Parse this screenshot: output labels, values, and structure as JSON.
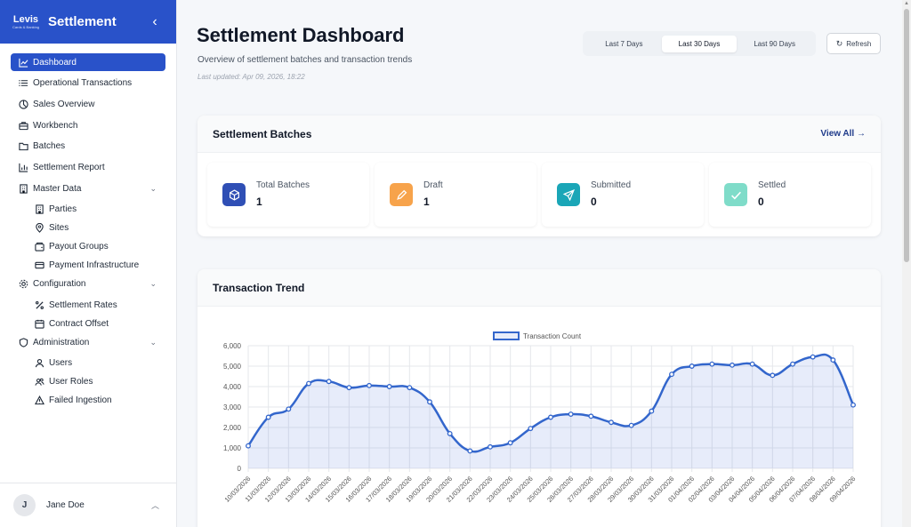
{
  "sidebar": {
    "title": "Settlement",
    "logo_text": "Levis",
    "logo_tagline": "Cards & Banking",
    "items": [
      {
        "label": "Dashboard",
        "icon": "chart-line-icon",
        "active": true
      },
      {
        "label": "Operational Transactions",
        "icon": "list-icon"
      },
      {
        "label": "Sales Overview",
        "icon": "pie-icon"
      },
      {
        "label": "Workbench",
        "icon": "briefcase-icon"
      },
      {
        "label": "Batches",
        "icon": "folder-icon"
      },
      {
        "label": "Settlement Report",
        "icon": "bar-chart-icon"
      }
    ],
    "groups": [
      {
        "label": "Master Data",
        "icon": "building-icon",
        "children": [
          {
            "label": "Parties",
            "icon": "building-icon"
          },
          {
            "label": "Sites",
            "icon": "map-pin-icon"
          },
          {
            "label": "Payout Groups",
            "icon": "wallet-icon"
          },
          {
            "label": "Payment Infrastructure",
            "icon": "credit-card-icon"
          }
        ]
      },
      {
        "label": "Configuration",
        "icon": "gear-icon",
        "children": [
          {
            "label": "Settlement Rates",
            "icon": "percent-icon"
          },
          {
            "label": "Contract Offset",
            "icon": "calendar-icon"
          }
        ]
      },
      {
        "label": "Administration",
        "icon": "shield-icon",
        "children": [
          {
            "label": "Users",
            "icon": "user-icon"
          },
          {
            "label": "User Roles",
            "icon": "users-icon"
          },
          {
            "label": "Failed Ingestion",
            "icon": "warning-icon"
          }
        ]
      }
    ],
    "user": {
      "initial": "J",
      "name": "Jane Doe"
    }
  },
  "header": {
    "title": "Settlement Dashboard",
    "subtitle": "Overview of settlement batches and transaction trends",
    "updated": "Last updated: Apr 09, 2026, 18:22",
    "ranges": [
      "Last 7 Days",
      "Last 30 Days",
      "Last 90 Days"
    ],
    "active_range": "Last 30 Days",
    "refresh_label": "Refresh"
  },
  "batches": {
    "title": "Settlement Batches",
    "view_all": "View All →",
    "stats": [
      {
        "label": "Total Batches",
        "value": "1",
        "color": "#2f4fb5",
        "icon": "cube-icon"
      },
      {
        "label": "Draft",
        "value": "1",
        "color": "#f7a34b",
        "icon": "edit-icon"
      },
      {
        "label": "Submitted",
        "value": "0",
        "color": "#1aa6b7",
        "icon": "send-icon"
      },
      {
        "label": "Settled",
        "value": "0",
        "color": "#7fdcc9",
        "icon": "check-icon"
      }
    ]
  },
  "trend": {
    "title": "Transaction Trend"
  },
  "chart_data": {
    "type": "line",
    "legend": "Transaction Count",
    "x": [
      "10/03/2026",
      "11/03/2026",
      "12/03/2026",
      "13/03/2026",
      "14/03/2026",
      "15/03/2026",
      "16/03/2026",
      "17/03/2026",
      "18/03/2026",
      "19/03/2026",
      "20/03/2026",
      "21/03/2026",
      "22/03/2026",
      "23/03/2026",
      "24/03/2026",
      "25/03/2026",
      "26/03/2026",
      "27/03/2026",
      "28/03/2026",
      "29/03/2026",
      "30/03/2026",
      "31/03/2026",
      "01/04/2026",
      "02/04/2026",
      "03/04/2026",
      "04/04/2026",
      "05/04/2026",
      "06/04/2026",
      "07/04/2026",
      "08/04/2026",
      "09/04/2026"
    ],
    "series": [
      {
        "name": "Transaction Count",
        "values": [
          1100,
          2500,
          2900,
          4150,
          4250,
          3950,
          4050,
          4000,
          3950,
          3250,
          1700,
          850,
          1050,
          1250,
          1950,
          2500,
          2650,
          2550,
          2250,
          2100,
          2800,
          4600,
          5000,
          5100,
          5050,
          5100,
          4550,
          5100,
          5450,
          5300,
          3100
        ]
      }
    ],
    "yticks": [
      "0",
      "1,000",
      "2,000",
      "3,000",
      "4,000",
      "5,000",
      "6,000"
    ],
    "ylim": [
      0,
      6000
    ],
    "grid": true,
    "legend_position": "top"
  }
}
